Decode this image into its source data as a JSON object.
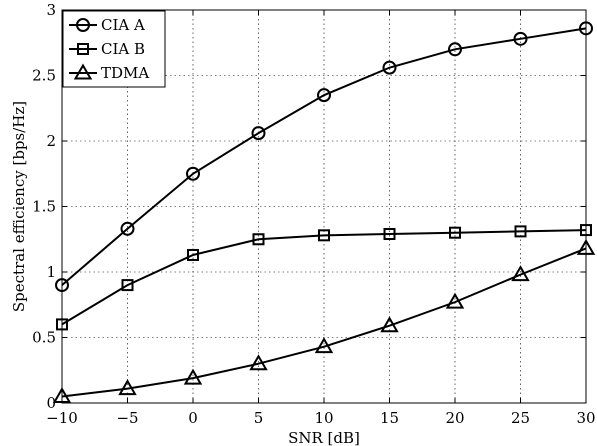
{
  "chart_data": {
    "type": "line",
    "title": "",
    "xlabel": "SNR [dB]",
    "ylabel": "Spectral efficiency [bps/Hz]",
    "x": [
      -10,
      -5,
      0,
      5,
      10,
      15,
      20,
      25,
      30
    ],
    "xlim": [
      -10,
      30
    ],
    "ylim": [
      0,
      3
    ],
    "xticks": [
      -10,
      -5,
      0,
      5,
      10,
      15,
      20,
      25,
      30
    ],
    "yticks": [
      0,
      0.5,
      1,
      1.5,
      2,
      2.5,
      3
    ],
    "xtick_labels": [
      "−10",
      "−5",
      "0",
      "5",
      "10",
      "15",
      "20",
      "25",
      "30"
    ],
    "ytick_labels": [
      "0",
      "0.5",
      "1",
      "1.5",
      "2",
      "2.5",
      "3"
    ],
    "grid": true,
    "legend_position": "top-left",
    "series": [
      {
        "name": "CIA A",
        "marker": "circle",
        "values": [
          0.9,
          1.33,
          1.75,
          2.06,
          2.35,
          2.56,
          2.7,
          2.78,
          2.86
        ]
      },
      {
        "name": "CIA B",
        "marker": "square",
        "values": [
          0.6,
          0.9,
          1.13,
          1.25,
          1.28,
          1.29,
          1.3,
          1.31,
          1.32
        ]
      },
      {
        "name": "TDMA",
        "marker": "triangle",
        "values": [
          0.05,
          0.11,
          0.19,
          0.3,
          0.43,
          0.59,
          0.77,
          0.98,
          1.18
        ]
      }
    ]
  }
}
